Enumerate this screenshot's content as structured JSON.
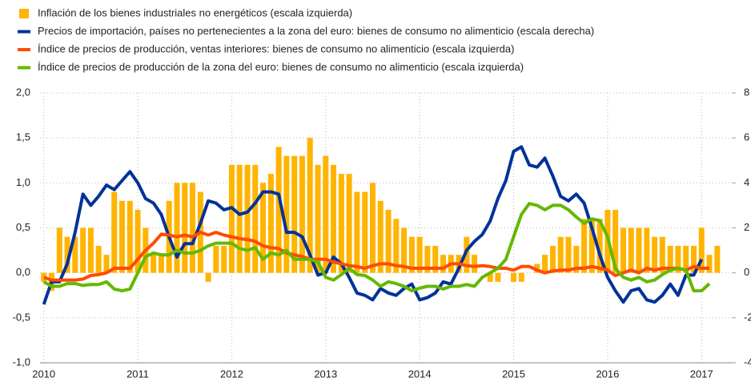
{
  "chart_data": {
    "type": "bar",
    "xlim": [
      2009.96,
      2017.33
    ],
    "xticks": [
      2010,
      2011,
      2012,
      2013,
      2014,
      2015,
      2016,
      2017
    ],
    "ylim": [
      -1,
      2
    ],
    "yticks": [
      {
        "value": 2,
        "label": "2,0"
      },
      {
        "value": 1.5,
        "label": "1,5"
      },
      {
        "value": 1,
        "label": "1,0"
      },
      {
        "value": 0.5,
        "label": "0,5"
      },
      {
        "value": 0,
        "label": "0,0"
      },
      {
        "value": -0.5,
        "label": "-0,5"
      },
      {
        "value": -1,
        "label": "-1,0"
      }
    ],
    "y2lim": [
      -4,
      8
    ],
    "y2ticks": [
      8,
      6,
      4,
      2,
      0,
      -2,
      -4
    ],
    "grid": true,
    "series": [
      {
        "name": "Inflación de los bienes industriales no energéticos (escala izquierda)",
        "type": "bar",
        "color": "#FFB400",
        "x": [
          2010,
          2010.083,
          2010.167,
          2010.25,
          2010.333,
          2010.417,
          2010.5,
          2010.583,
          2010.667,
          2010.75,
          2010.833,
          2010.917,
          2011,
          2011.083,
          2011.167,
          2011.25,
          2011.333,
          2011.417,
          2011.5,
          2011.583,
          2011.667,
          2011.75,
          2011.833,
          2011.917,
          2012,
          2012.083,
          2012.167,
          2012.25,
          2012.333,
          2012.417,
          2012.5,
          2012.583,
          2012.667,
          2012.75,
          2012.833,
          2012.917,
          2013,
          2013.083,
          2013.167,
          2013.25,
          2013.333,
          2013.417,
          2013.5,
          2013.583,
          2013.667,
          2013.75,
          2013.833,
          2013.917,
          2014,
          2014.083,
          2014.167,
          2014.25,
          2014.333,
          2014.417,
          2014.5,
          2014.583,
          2014.667,
          2014.75,
          2014.833,
          2014.917,
          2015,
          2015.083,
          2015.167,
          2015.25,
          2015.333,
          2015.417,
          2015.5,
          2015.583,
          2015.667,
          2015.75,
          2015.833,
          2015.917,
          2016,
          2016.083,
          2016.167,
          2016.25,
          2016.333,
          2016.417,
          2016.5,
          2016.583,
          2016.667,
          2016.75,
          2016.833,
          2016.917,
          2017,
          2017.083,
          2017.167
        ],
        "values": [
          -0.1,
          -0.2,
          0.5,
          0.4,
          0.4,
          0.5,
          0.5,
          0.3,
          0.2,
          0.9,
          0.8,
          0.8,
          0.7,
          0.5,
          0.2,
          0.2,
          0.8,
          1.0,
          1.0,
          1.0,
          0.9,
          -0.1,
          0.3,
          0.3,
          1.2,
          1.2,
          1.2,
          1.2,
          1.0,
          1.1,
          1.4,
          1.3,
          1.3,
          1.3,
          1.5,
          1.2,
          1.3,
          1.2,
          1.1,
          1.1,
          0.9,
          0.9,
          1.0,
          0.8,
          0.7,
          0.6,
          0.5,
          0.4,
          0.4,
          0.3,
          0.3,
          0.2,
          0.2,
          0.2,
          0.4,
          0.2,
          0.0,
          -0.1,
          -0.1,
          0.0,
          -0.1,
          -0.1,
          0.0,
          0.1,
          0.2,
          0.3,
          0.4,
          0.4,
          0.3,
          0.6,
          0.6,
          0.6,
          0.7,
          0.7,
          0.5,
          0.5,
          0.5,
          0.5,
          0.4,
          0.4,
          0.3,
          0.3,
          0.3,
          0.3,
          0.5,
          0.2,
          0.3
        ]
      },
      {
        "name": "Precios de importación, países no pertenecientes a la zona del euro: bienes de consumo no alimenticio (escala derecha)",
        "type": "line",
        "axis": "y2",
        "color": "#003299",
        "x": [
          2010,
          2010.083,
          2010.167,
          2010.25,
          2010.333,
          2010.417,
          2010.5,
          2010.583,
          2010.667,
          2010.75,
          2010.833,
          2010.917,
          2011,
          2011.083,
          2011.167,
          2011.25,
          2011.333,
          2011.417,
          2011.5,
          2011.583,
          2011.667,
          2011.75,
          2011.833,
          2011.917,
          2012,
          2012.083,
          2012.167,
          2012.25,
          2012.333,
          2012.417,
          2012.5,
          2012.583,
          2012.667,
          2012.75,
          2012.833,
          2012.917,
          2013,
          2013.083,
          2013.167,
          2013.25,
          2013.333,
          2013.417,
          2013.5,
          2013.583,
          2013.667,
          2013.75,
          2013.833,
          2013.917,
          2014,
          2014.083,
          2014.167,
          2014.25,
          2014.333,
          2014.417,
          2014.5,
          2014.583,
          2014.667,
          2014.75,
          2014.833,
          2014.917,
          2015,
          2015.083,
          2015.167,
          2015.25,
          2015.333,
          2015.417,
          2015.5,
          2015.583,
          2015.667,
          2015.75,
          2015.833,
          2015.917,
          2016,
          2016.083,
          2016.167,
          2016.25,
          2016.333,
          2016.417,
          2016.5,
          2016.583,
          2016.667,
          2016.75,
          2016.833,
          2016.917,
          2017
        ],
        "values": [
          -1.4,
          -0.4,
          -0.4,
          0.4,
          1.8,
          3.5,
          3.0,
          3.4,
          3.9,
          3.7,
          4.1,
          4.5,
          4.0,
          3.3,
          3.1,
          2.6,
          1.6,
          0.7,
          1.3,
          1.3,
          2.2,
          3.2,
          3.1,
          2.8,
          2.9,
          2.6,
          2.7,
          3.1,
          3.6,
          3.6,
          3.5,
          1.8,
          1.8,
          1.6,
          0.8,
          -0.1,
          0.0,
          0.7,
          0.4,
          -0.2,
          -0.9,
          -1.0,
          -1.2,
          -0.7,
          -0.9,
          -1.0,
          -0.7,
          -0.5,
          -1.2,
          -1.1,
          -0.9,
          -0.4,
          -0.5,
          0.2,
          1.0,
          1.4,
          1.7,
          2.3,
          3.3,
          4.1,
          5.4,
          5.6,
          4.8,
          4.7,
          5.1,
          4.3,
          3.4,
          3.2,
          3.5,
          3.1,
          2.0,
          0.8,
          -0.2,
          -0.8,
          -1.3,
          -0.8,
          -0.7,
          -1.2,
          -1.3,
          -1.0,
          -0.5,
          -1.0,
          -0.1,
          -0.1,
          0.6
        ]
      },
      {
        "name": "Índice de precios de producción, ventas interiores: bienes de consumo no alimenticio (escala izquierda)",
        "type": "line",
        "color": "#FF4B00",
        "x": [
          2010,
          2010.083,
          2010.167,
          2010.25,
          2010.333,
          2010.417,
          2010.5,
          2010.583,
          2010.667,
          2010.75,
          2010.833,
          2010.917,
          2011,
          2011.083,
          2011.167,
          2011.25,
          2011.333,
          2011.417,
          2011.5,
          2011.583,
          2011.667,
          2011.75,
          2011.833,
          2011.917,
          2012,
          2012.083,
          2012.167,
          2012.25,
          2012.333,
          2012.417,
          2012.5,
          2012.583,
          2012.667,
          2012.75,
          2012.833,
          2012.917,
          2013,
          2013.083,
          2013.167,
          2013.25,
          2013.333,
          2013.417,
          2013.5,
          2013.583,
          2013.667,
          2013.75,
          2013.833,
          2013.917,
          2014,
          2014.083,
          2014.167,
          2014.25,
          2014.333,
          2014.417,
          2014.5,
          2014.583,
          2014.667,
          2014.75,
          2014.833,
          2014.917,
          2015,
          2015.083,
          2015.167,
          2015.25,
          2015.333,
          2015.417,
          2015.5,
          2015.583,
          2015.667,
          2015.75,
          2015.833,
          2015.917,
          2016,
          2016.083,
          2016.167,
          2016.25,
          2016.333,
          2016.417,
          2016.5,
          2016.583,
          2016.667,
          2016.75,
          2016.833,
          2016.917,
          2017,
          2017.083
        ],
        "values": [
          -0.05,
          -0.08,
          -0.08,
          -0.08,
          -0.08,
          -0.07,
          -0.03,
          -0.02,
          0.0,
          0.05,
          0.05,
          0.05,
          0.15,
          0.25,
          0.33,
          0.43,
          0.42,
          0.4,
          0.42,
          0.4,
          0.45,
          0.42,
          0.45,
          0.42,
          0.4,
          0.38,
          0.37,
          0.35,
          0.3,
          0.28,
          0.27,
          0.22,
          0.2,
          0.18,
          0.15,
          0.15,
          0.15,
          0.12,
          0.1,
          0.08,
          0.07,
          0.05,
          0.08,
          0.1,
          0.1,
          0.08,
          0.07,
          0.05,
          0.05,
          0.05,
          0.05,
          0.05,
          0.1,
          0.1,
          0.08,
          0.07,
          0.08,
          0.07,
          0.05,
          0.05,
          0.03,
          0.07,
          0.07,
          0.03,
          0.0,
          0.02,
          0.03,
          0.03,
          0.05,
          0.05,
          0.07,
          0.05,
          0.03,
          -0.03,
          0.0,
          0.03,
          0.0,
          0.05,
          0.03,
          0.05,
          0.05,
          0.05,
          0.03,
          0.07,
          0.05,
          0.05
        ]
      },
      {
        "name": "Índice de precios de producción de la zona del euro: bienes de consumo no alimenticio (escala izquierda)",
        "type": "line",
        "color": "#65B800",
        "x": [
          2010,
          2010.083,
          2010.167,
          2010.25,
          2010.333,
          2010.417,
          2010.5,
          2010.583,
          2010.667,
          2010.75,
          2010.833,
          2010.917,
          2011,
          2011.083,
          2011.167,
          2011.25,
          2011.333,
          2011.417,
          2011.5,
          2011.583,
          2011.667,
          2011.75,
          2011.833,
          2011.917,
          2012,
          2012.083,
          2012.167,
          2012.25,
          2012.333,
          2012.417,
          2012.5,
          2012.583,
          2012.667,
          2012.75,
          2012.833,
          2012.917,
          2013,
          2013.083,
          2013.167,
          2013.25,
          2013.333,
          2013.417,
          2013.5,
          2013.583,
          2013.667,
          2013.75,
          2013.833,
          2013.917,
          2014,
          2014.083,
          2014.167,
          2014.25,
          2014.333,
          2014.417,
          2014.5,
          2014.583,
          2014.667,
          2014.75,
          2014.833,
          2014.917,
          2015,
          2015.083,
          2015.167,
          2015.25,
          2015.333,
          2015.417,
          2015.5,
          2015.583,
          2015.667,
          2015.75,
          2015.833,
          2015.917,
          2016,
          2016.083,
          2016.167,
          2016.25,
          2016.333,
          2016.417,
          2016.5,
          2016.583,
          2016.667,
          2016.75,
          2016.833,
          2016.917,
          2017,
          2017.083
        ],
        "values": [
          -0.1,
          -0.15,
          -0.15,
          -0.12,
          -0.12,
          -0.14,
          -0.13,
          -0.13,
          -0.1,
          -0.18,
          -0.2,
          -0.18,
          0.0,
          0.18,
          0.22,
          0.2,
          0.2,
          0.25,
          0.22,
          0.22,
          0.25,
          0.3,
          0.33,
          0.33,
          0.33,
          0.27,
          0.25,
          0.28,
          0.15,
          0.22,
          0.2,
          0.25,
          0.15,
          0.15,
          0.15,
          0.12,
          -0.05,
          -0.08,
          -0.02,
          0.05,
          -0.02,
          -0.03,
          -0.08,
          -0.15,
          -0.1,
          -0.12,
          -0.15,
          -0.2,
          -0.17,
          -0.15,
          -0.15,
          -0.18,
          -0.15,
          -0.15,
          -0.13,
          -0.15,
          -0.05,
          0.0,
          0.05,
          0.15,
          0.4,
          0.65,
          0.77,
          0.75,
          0.7,
          0.75,
          0.75,
          0.7,
          0.62,
          0.55,
          0.6,
          0.58,
          0.4,
          0.05,
          -0.05,
          -0.08,
          -0.05,
          -0.1,
          -0.08,
          -0.02,
          0.03,
          0.05,
          0.03,
          -0.2,
          -0.2,
          -0.12
        ]
      }
    ]
  }
}
